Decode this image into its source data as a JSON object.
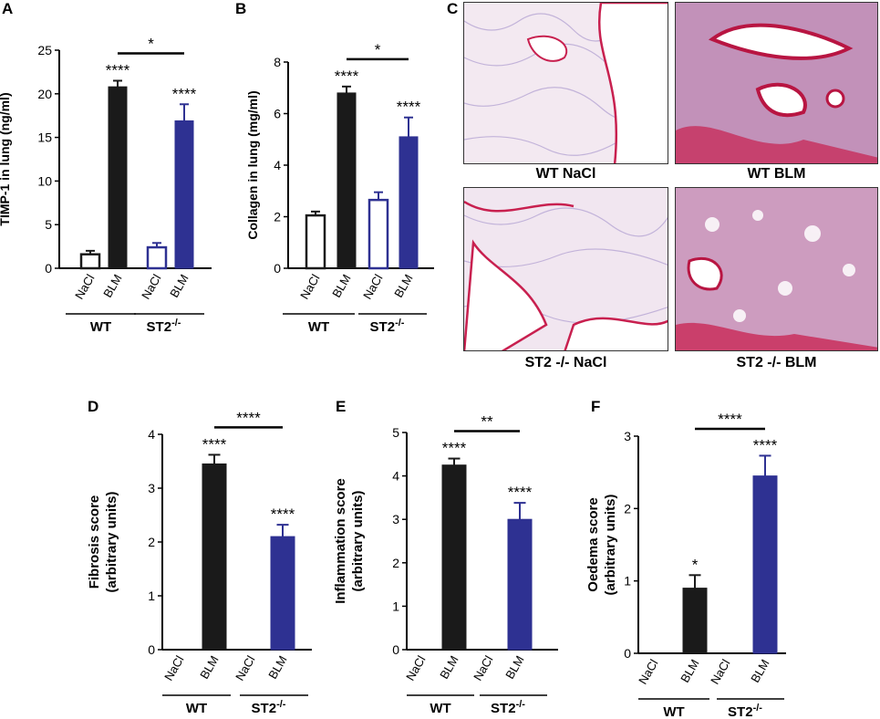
{
  "panels": {
    "A": {
      "letter": "A"
    },
    "B": {
      "letter": "B"
    },
    "C": {
      "letter": "C"
    },
    "D": {
      "letter": "D"
    },
    "E": {
      "letter": "E"
    },
    "F": {
      "letter": "F"
    }
  },
  "colors": {
    "wt": "#1a1a1a",
    "st2": "#2e3192",
    "tissue_pink": "#e4b3cc",
    "tissue_red": "#c8204f",
    "tissue_purple": "#8a7bc0"
  },
  "group_labels": {
    "wt": "WT",
    "st2_base": "ST2",
    "st2_sup": "-/-"
  },
  "micrographs": [
    {
      "caption": "WT NaCl"
    },
    {
      "caption": "WT BLM"
    },
    {
      "caption": "ST2 -/- NaCl"
    },
    {
      "caption": "ST2 -/- BLM"
    }
  ],
  "chart_data": [
    {
      "panel": "A",
      "type": "bar",
      "categories": [
        "NaCl",
        "BLM",
        "NaCl",
        "BLM"
      ],
      "groups": [
        "WT",
        "WT",
        "ST2-/-",
        "ST2-/-"
      ],
      "values": [
        1.6,
        20.8,
        2.4,
        16.9
      ],
      "errors": [
        0.4,
        0.7,
        0.5,
        1.9
      ],
      "fill": [
        "open",
        "filled",
        "open",
        "filled"
      ],
      "ylabel": "TIMP-1 in lung (ng/ml)",
      "ylim": [
        0,
        25
      ],
      "yticks": [
        0,
        5,
        10,
        15,
        20,
        25
      ],
      "bar_annotations": [
        "",
        "****",
        "",
        "****"
      ],
      "comparison": {
        "from": 1,
        "to": 3,
        "label": "*"
      }
    },
    {
      "panel": "B",
      "type": "bar",
      "categories": [
        "NaCl",
        "BLM",
        "NaCl",
        "BLM"
      ],
      "groups": [
        "WT",
        "WT",
        "ST2-/-",
        "ST2-/-"
      ],
      "values": [
        2.05,
        6.8,
        2.65,
        5.1
      ],
      "errors": [
        0.15,
        0.25,
        0.3,
        0.75
      ],
      "fill": [
        "open",
        "filled",
        "open",
        "filled"
      ],
      "ylabel": "Collagen in lung (mg/ml)",
      "ylim": [
        0,
        8
      ],
      "yticks": [
        0,
        2,
        4,
        6,
        8
      ],
      "bar_annotations": [
        "",
        "****",
        "",
        "****"
      ],
      "comparison": {
        "from": 1,
        "to": 3,
        "label": "*"
      }
    },
    {
      "panel": "D",
      "type": "bar",
      "categories": [
        "NaCl",
        "BLM",
        "NaCl",
        "BLM"
      ],
      "groups": [
        "WT",
        "WT",
        "ST2-/-",
        "ST2-/-"
      ],
      "values": [
        0,
        3.45,
        0,
        2.1
      ],
      "errors": [
        0,
        0.17,
        0,
        0.22
      ],
      "fill": [
        "open",
        "filled",
        "open",
        "filled"
      ],
      "ylabel": [
        "Fibrosis score",
        "(arbitrary units)"
      ],
      "ylim": [
        0,
        4
      ],
      "yticks": [
        0,
        1,
        2,
        3,
        4
      ],
      "bar_annotations": [
        "",
        "****",
        "",
        "****"
      ],
      "comparison": {
        "from": 1,
        "to": 3,
        "label": "****"
      }
    },
    {
      "panel": "E",
      "type": "bar",
      "categories": [
        "NaCl",
        "BLM",
        "NaCl",
        "BLM"
      ],
      "groups": [
        "WT",
        "WT",
        "ST2-/-",
        "ST2-/-"
      ],
      "values": [
        0,
        4.25,
        0,
        3.0
      ],
      "errors": [
        0,
        0.15,
        0,
        0.38
      ],
      "fill": [
        "open",
        "filled",
        "open",
        "filled"
      ],
      "ylabel": [
        "Inflammation score",
        "(arbitrary units)"
      ],
      "ylim": [
        0,
        5
      ],
      "yticks": [
        0,
        1,
        2,
        3,
        4,
        5
      ],
      "bar_annotations": [
        "",
        "****",
        "",
        "****"
      ],
      "comparison": {
        "from": 1,
        "to": 3,
        "label": "**"
      }
    },
    {
      "panel": "F",
      "type": "bar",
      "categories": [
        "NaCl",
        "BLM",
        "NaCl",
        "BLM"
      ],
      "groups": [
        "WT",
        "WT",
        "ST2-/-",
        "ST2-/-"
      ],
      "values": [
        0,
        0.9,
        0,
        2.45
      ],
      "errors": [
        0,
        0.18,
        0,
        0.28
      ],
      "fill": [
        "open",
        "filled",
        "open",
        "filled"
      ],
      "ylabel": [
        "Oedema score",
        "(arbitrary units)"
      ],
      "ylim": [
        0,
        3
      ],
      "yticks": [
        0,
        1,
        2,
        3
      ],
      "bar_annotations": [
        "",
        "*",
        "",
        "****"
      ],
      "comparison": {
        "from": 1,
        "to": 3,
        "label": "****"
      }
    }
  ]
}
